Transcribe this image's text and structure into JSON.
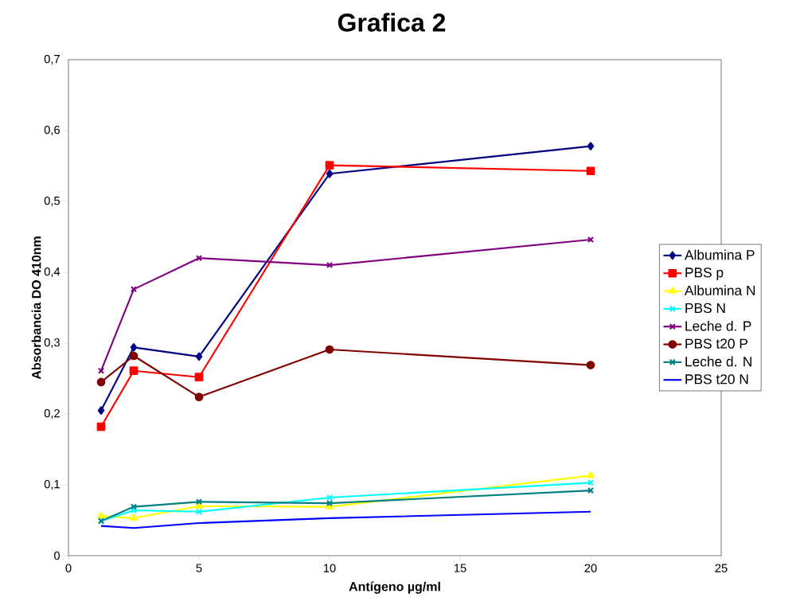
{
  "chart_data": {
    "type": "line",
    "title": "Grafica 2",
    "xlabel": "Antígeno µg/ml",
    "ylabel": "Absorbancia DO 410nm",
    "x": [
      1.25,
      2.5,
      5,
      10,
      20
    ],
    "series": [
      {
        "name": "Albumina P",
        "color": "#000080",
        "marker": "diamond",
        "values": [
          0.205,
          0.294,
          0.281,
          0.539,
          0.578
        ]
      },
      {
        "name": "PBS p",
        "color": "#ff0000",
        "marker": "square",
        "values": [
          0.182,
          0.261,
          0.252,
          0.551,
          0.543
        ]
      },
      {
        "name": "Albumina N",
        "color": "#ffff00",
        "marker": "triangle",
        "values": [
          0.056,
          0.053,
          0.07,
          0.069,
          0.113
        ]
      },
      {
        "name": "PBS N",
        "color": "#00ffff",
        "marker": "cross",
        "values": [
          0.049,
          0.064,
          0.062,
          0.082,
          0.103
        ]
      },
      {
        "name": "Leche d. P",
        "color": "#800080",
        "marker": "cross",
        "values": [
          0.261,
          0.376,
          0.42,
          0.41,
          0.446
        ]
      },
      {
        "name": "PBS t20 P",
        "color": "#800000",
        "marker": "circle",
        "values": [
          0.245,
          0.282,
          0.224,
          0.291,
          0.269
        ]
      },
      {
        "name": "Leche d. N",
        "color": "#008080",
        "marker": "cross",
        "values": [
          0.049,
          0.069,
          0.076,
          0.074,
          0.092
        ]
      },
      {
        "name": "PBS t20 N",
        "color": "#0000ff",
        "marker": "none",
        "values": [
          0.042,
          0.039,
          0.046,
          0.053,
          0.062
        ]
      }
    ],
    "xlim": [
      0,
      25
    ],
    "xticks": [
      0,
      5,
      10,
      15,
      20,
      25
    ],
    "ylim": [
      0,
      0.7
    ],
    "yticks": [
      0,
      {
        "value": 0.1,
        "label": "0,1"
      },
      {
        "value": 0.2,
        "label": "0,2"
      },
      {
        "value": 0.3,
        "label": "0,3"
      },
      {
        "value": 0.4,
        "label": "0,4"
      },
      {
        "value": 0.5,
        "label": "0,5"
      },
      {
        "value": 0.6,
        "label": "0,6"
      },
      {
        "value": 0.7,
        "label": "0,7"
      }
    ],
    "grid": false,
    "legend": "right",
    "line_style": "solid"
  }
}
